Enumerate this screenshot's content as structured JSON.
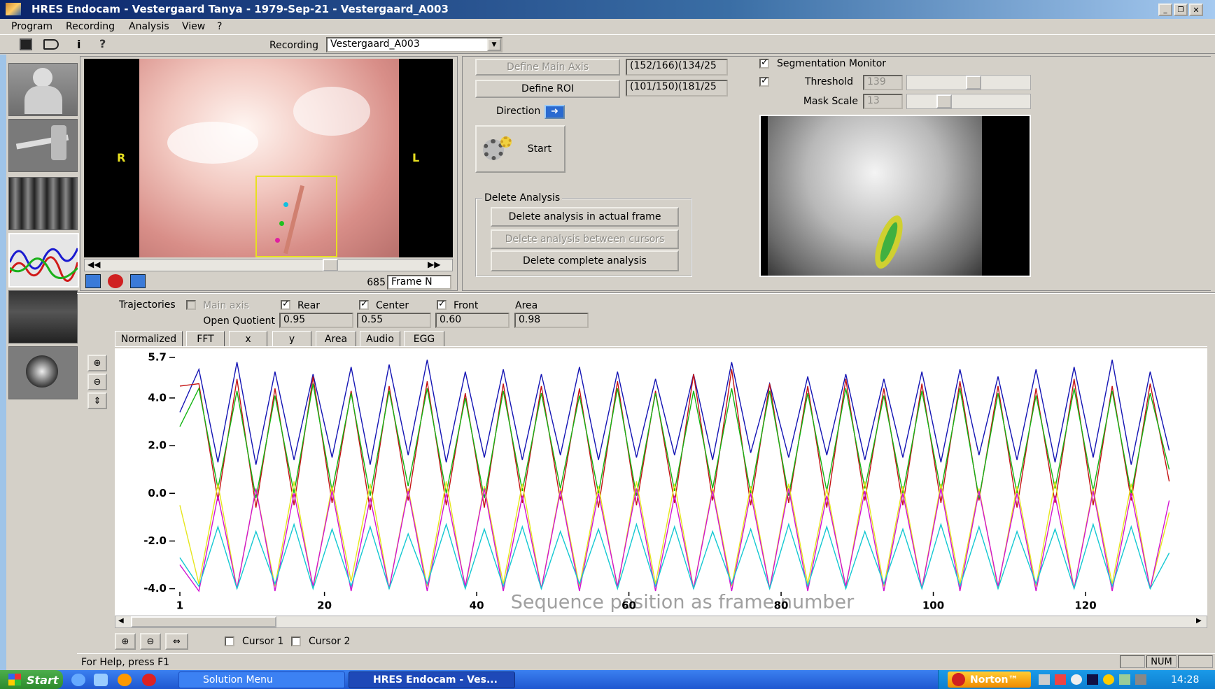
{
  "window": {
    "title": "HRES Endocam - Vestergaard Tanya - 1979-Sep-21 - Vestergaard_A003"
  },
  "menu": [
    "Program",
    "Recording",
    "Analysis",
    "View",
    "?"
  ],
  "toolbar": {
    "recording_label": "Recording",
    "recording_value": "Vestergaard_A003"
  },
  "video": {
    "left_marker": "R",
    "right_marker": "L",
    "frame": "685",
    "frame_mode": "Frame N"
  },
  "analysis": {
    "define_main_axis": "Define Main Axis",
    "main_axis_coords": "(152/166)(134/25",
    "define_roi": "Define ROI",
    "roi_coords": "(101/150)(181/25",
    "direction": "Direction",
    "start": "Start",
    "delete_group": "Delete Analysis",
    "delete_buttons": [
      "Delete analysis in actual frame",
      "Delete analysis between cursors",
      "Delete complete analysis"
    ]
  },
  "segmentation": {
    "monitor": "Segmentation Monitor",
    "monitor_checked": true,
    "threshold_label": "Threshold",
    "threshold_checked": true,
    "threshold": "139",
    "mask_scale_label": "Mask Scale",
    "mask_scale": "13"
  },
  "trajectories": {
    "label": "Trajectories",
    "options": [
      {
        "name": "Main axis",
        "checked": false
      },
      {
        "name": "Rear",
        "checked": true
      },
      {
        "name": "Center",
        "checked": true
      },
      {
        "name": "Front",
        "checked": true
      }
    ],
    "area_label": "Area",
    "open_quotient_label": "Open Quotient",
    "open_quotient": [
      "0.95",
      "0.55",
      "0.60",
      "0.98"
    ]
  },
  "tabs": [
    "Normalized",
    "FFT",
    "x",
    "y",
    "Area",
    "Audio",
    "EGG"
  ],
  "chart_data": {
    "type": "line",
    "xlabel": "Sequence position as frame number",
    "x": [
      1,
      3.5,
      6,
      8.5,
      11,
      13.5,
      16,
      18.5,
      21,
      23.5,
      26,
      28.5,
      31,
      33.5,
      36,
      38.5,
      41,
      43.5,
      46,
      48.5,
      51,
      53.5,
      56,
      58.5,
      61,
      63.5,
      66,
      68.5,
      71,
      73.5,
      76,
      78.5,
      81,
      83.5,
      86,
      88.5,
      91,
      93.5,
      96,
      98.5,
      101,
      103.5,
      106,
      108.5,
      111,
      113.5,
      116,
      118.5,
      121,
      123.5,
      126,
      128.5,
      131
    ],
    "xlim": [
      1,
      136
    ],
    "xticks": [
      1,
      20,
      40,
      60,
      80,
      100,
      120
    ],
    "ylim": [
      -4.1,
      5.7
    ],
    "yticks": [
      5.7,
      {
        "value": 4,
        "label": "4.0"
      },
      {
        "value": 2,
        "label": "2.0"
      },
      {
        "value": 0,
        "label": "0.0"
      },
      {
        "value": -2,
        "label": "-2.0"
      },
      {
        "value": -4,
        "label": "-4.0"
      }
    ],
    "series": [
      {
        "color": "#1414b4",
        "values": [
          3.4,
          5.2,
          1.3,
          5.5,
          1.2,
          5.1,
          1.4,
          5.0,
          1.5,
          5.3,
          1.2,
          5.4,
          1.6,
          5.6,
          1.3,
          5.1,
          1.5,
          5.2,
          1.4,
          5.0,
          1.6,
          5.3,
          1.4,
          5.1,
          1.5,
          4.8,
          1.6,
          5.0,
          1.4,
          5.5,
          1.7,
          4.6,
          1.5,
          4.9,
          1.6,
          5.0,
          1.4,
          4.8,
          1.5,
          5.1,
          1.3,
          5.2,
          1.6,
          4.9,
          1.4,
          5.2,
          1.3,
          5.3,
          1.5,
          5.6,
          1.2,
          5.1,
          1.8
        ]
      },
      {
        "color": "#c41414",
        "values": [
          4.5,
          4.6,
          -0.3,
          4.8,
          -0.6,
          4.4,
          -0.5,
          4.9,
          -0.4,
          4.3,
          -0.7,
          4.5,
          -0.3,
          4.7,
          -0.5,
          4.2,
          -0.6,
          4.6,
          -0.4,
          4.5,
          -0.3,
          4.4,
          -0.6,
          4.7,
          -0.5,
          4.3,
          -0.4,
          5.0,
          -0.3,
          5.2,
          -0.5,
          4.6,
          -0.4,
          4.5,
          -0.6,
          4.8,
          -0.3,
          4.4,
          -0.5,
          4.6,
          -0.4,
          4.7,
          -0.3,
          4.5,
          -0.6,
          4.4,
          -0.4,
          4.8,
          -0.5,
          4.5,
          -0.3,
          4.6,
          0.5
        ]
      },
      {
        "color": "#14b414",
        "values": [
          2.8,
          4.4,
          0.2,
          4.3,
          -0.2,
          4.1,
          0.0,
          4.6,
          0.1,
          4.2,
          -0.1,
          4.3,
          0.3,
          4.4,
          0.0,
          4.0,
          -0.2,
          4.3,
          0.1,
          4.2,
          0.2,
          4.1,
          0.0,
          4.4,
          -0.1,
          4.2,
          0.1,
          4.3,
          0.2,
          4.4,
          0.0,
          4.3,
          -0.1,
          4.2,
          0.1,
          4.4,
          0.2,
          4.1,
          0.0,
          4.3,
          0.1,
          4.4,
          -0.2,
          4.2,
          0.0,
          4.1,
          0.2,
          4.4,
          0.1,
          4.3,
          0.0,
          4.2,
          1.0
        ]
      },
      {
        "color": "#e6e61e",
        "values": [
          -0.5,
          -3.8,
          0.4,
          -4.0,
          0.2,
          -3.9,
          0.5,
          -4.0,
          0.3,
          -3.7,
          0.4,
          -4.0,
          0.2,
          -3.9,
          0.5,
          -4.0,
          0.3,
          -3.8,
          0.4,
          -4.0,
          0.2,
          -3.9,
          0.3,
          -4.0,
          0.5,
          -3.8,
          0.4,
          -4.0,
          0.2,
          -3.9,
          0.3,
          -4.0,
          0.4,
          -3.8,
          0.2,
          -4.0,
          0.5,
          -3.9,
          0.3,
          -4.0,
          0.4,
          -3.8,
          0.2,
          -4.0,
          0.3,
          -3.9,
          0.5,
          -4.0,
          0.2,
          -3.8,
          0.4,
          -4.0,
          -0.8
        ]
      },
      {
        "color": "#d214d2",
        "values": [
          -3.0,
          -4.1,
          -0.1,
          -4.0,
          0.2,
          -4.1,
          0.0,
          -3.9,
          0.1,
          -4.1,
          -0.2,
          -4.0,
          0.1,
          -4.1,
          0.0,
          -3.9,
          0.2,
          -4.1,
          -0.1,
          -4.0,
          0.1,
          -4.1,
          0.0,
          -3.9,
          0.2,
          -4.1,
          -0.1,
          -4.0,
          0.1,
          -4.1,
          0.0,
          -4.0,
          0.2,
          -4.1,
          -0.1,
          -3.9,
          0.1,
          -4.1,
          0.0,
          -4.0,
          0.2,
          -4.1,
          0.1,
          -3.9,
          0.0,
          -4.1,
          -0.1,
          -4.0,
          0.1,
          -4.1,
          0.0,
          -4.0,
          -0.3
        ]
      },
      {
        "color": "#14c8d2",
        "values": [
          -2.7,
          -3.9,
          -1.4,
          -4.0,
          -1.6,
          -3.8,
          -1.3,
          -4.0,
          -1.5,
          -3.9,
          -1.4,
          -4.0,
          -1.7,
          -3.8,
          -1.3,
          -4.0,
          -1.5,
          -3.9,
          -1.4,
          -4.0,
          -1.6,
          -3.8,
          -1.5,
          -4.0,
          -1.3,
          -3.9,
          -1.4,
          -4.0,
          -1.6,
          -3.8,
          -1.5,
          -4.0,
          -1.3,
          -3.9,
          -1.4,
          -4.0,
          -1.6,
          -3.8,
          -1.5,
          -4.0,
          -1.3,
          -3.9,
          -1.4,
          -4.0,
          -1.6,
          -3.8,
          -1.5,
          -4.0,
          -1.3,
          -3.9,
          -1.4,
          -4.0,
          -2.5
        ]
      }
    ]
  },
  "cursors": [
    {
      "name": "Cursor 1",
      "checked": false
    },
    {
      "name": "Cursor 2",
      "checked": false
    }
  ],
  "status": {
    "help": "For Help, press F1",
    "num": "NUM"
  },
  "taskbar": {
    "start": "Start",
    "items": [
      "Solution Menu",
      "HRES Endocam - Ves..."
    ],
    "norton": "Norton™",
    "clock": "14:28"
  }
}
